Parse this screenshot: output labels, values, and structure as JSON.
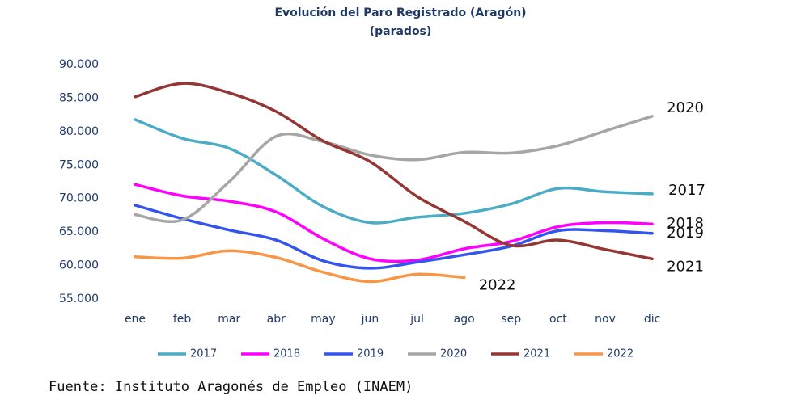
{
  "chart_data": {
    "type": "line",
    "title": "Evolución del Paro Registrado (Aragón)",
    "subtitle": "(parados)",
    "categories": [
      "ene",
      "feb",
      "mar",
      "abr",
      "may",
      "jun",
      "jul",
      "ago",
      "sep",
      "oct",
      "nov",
      "dic"
    ],
    "ylim": [
      55000,
      90000
    ],
    "yticks": [
      {
        "value": 55000,
        "label": "55.000"
      },
      {
        "value": 60000,
        "label": "60.000"
      },
      {
        "value": 65000,
        "label": "65.000"
      },
      {
        "value": 70000,
        "label": "70.000"
      },
      {
        "value": 75000,
        "label": "75.000"
      },
      {
        "value": 80000,
        "label": "80.000"
      },
      {
        "value": 85000,
        "label": "85.000"
      },
      {
        "value": 90000,
        "label": "90.000"
      }
    ],
    "grid": false,
    "legend": "bottom",
    "series": [
      {
        "name": "2017",
        "color": "#4bacc6",
        "values": [
          81800,
          79000,
          77500,
          73500,
          68800,
          66400,
          67200,
          67800,
          69200,
          71500,
          71000,
          70700
        ]
      },
      {
        "name": "2018",
        "color": "#ff00ff",
        "values": [
          72100,
          70400,
          69600,
          68000,
          64000,
          61000,
          60800,
          62500,
          63600,
          65800,
          66400,
          66200
        ]
      },
      {
        "name": "2019",
        "color": "#3355ee",
        "values": [
          69000,
          67000,
          65300,
          63800,
          60700,
          59600,
          60500,
          61600,
          62900,
          65200,
          65200,
          64800
        ]
      },
      {
        "name": "2020",
        "color": "#a6a6a6",
        "values": [
          67600,
          66800,
          72500,
          79300,
          78500,
          76500,
          75800,
          76900,
          76800,
          77900,
          80100,
          82300
        ]
      },
      {
        "name": "2021",
        "color": "#943634",
        "values": [
          85200,
          87200,
          85800,
          83000,
          78600,
          75500,
          70300,
          66600,
          63000,
          63800,
          62400,
          61000
        ]
      },
      {
        "name": "2022",
        "color": "#f79646",
        "values": [
          61300,
          61100,
          62200,
          61200,
          59000,
          57600,
          58700,
          58200,
          null,
          null,
          null,
          null
        ]
      }
    ],
    "source": "Fuente: Instituto Aragonés de Empleo (INAEM)"
  }
}
